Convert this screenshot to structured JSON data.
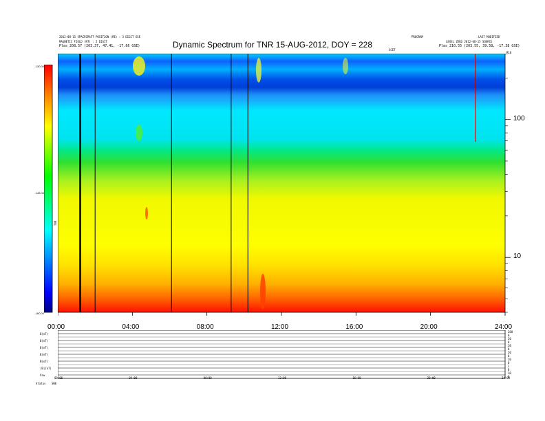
{
  "title": "Dynamic Spectrum for TNR 15-AUG-2012, DOY = 228",
  "header_left": [
    "2012-08-15 SPACECRAFT POSITION (RE) : 3 DIGIT GSE",
    "MAGNETIC FIELD (NT) : 2 DIGIT",
    "Plas    208.57 (203.37, 47.41, -17.66 GSE)"
  ],
  "header_right_col1": [
    "PROGRAM",
    "SCET",
    ""
  ],
  "header_right_col2": [
    "LAST MODIFIED",
    "LEVEL ZERO 2012-08-15 SOURCE",
    "Plas    210.55 (203.55, 39.58, -17.38 GSE)"
  ],
  "top_right_code": "R10",
  "colorbar": {
    "label": "TNR",
    "ticks": [
      "-130.00",
      "-145.00",
      "-160.00"
    ],
    "gradient": [
      "#ff0000",
      "#ff8000",
      "#ffff00",
      "#00ff00",
      "#00ffff",
      "#0000ff",
      "#000080"
    ]
  },
  "chart_data": {
    "type": "heatmap",
    "title": "Dynamic Spectrum for TNR 15-AUG-2012, DOY = 228",
    "xlabel": "",
    "ylabel": "",
    "x_unit": "hours UT",
    "xlim": [
      0,
      24
    ],
    "x_ticks": [
      "00:00",
      "04:00",
      "08:00",
      "12:00",
      "16:00",
      "20:00",
      "24:00"
    ],
    "y_scale": "log",
    "ylim": [
      4,
      300
    ],
    "y_ticks": [
      "100",
      "10"
    ],
    "colorbar_range": [
      -160,
      -130
    ],
    "grid": false,
    "data_gaps_hours": [
      1.2,
      2.0,
      6.1,
      9.3,
      10.2
    ],
    "red_line_hours": 22.4,
    "bands": [
      {
        "name": "orange-red",
        "freq_low": 4,
        "freq_high": 5
      },
      {
        "name": "yellow-orange",
        "freq_low": 5,
        "freq_high": 9
      },
      {
        "name": "yellow",
        "freq_low": 9,
        "freq_high": 45
      },
      {
        "name": "green",
        "freq_low": 45,
        "freq_high": 70
      },
      {
        "name": "cyan",
        "freq_low": 70,
        "freq_high": 180
      },
      {
        "name": "blue",
        "freq_low": 180,
        "freq_high": 300
      }
    ],
    "bursts_hours": [
      4.2,
      10.7,
      15.3
    ]
  },
  "lower_panel": {
    "row_labels": [
      "B(nT)",
      "B(nT)",
      "B(nT)",
      "B(nT)",
      "N(nT)",
      "|B|(nT)",
      "Vsw"
    ],
    "left_footer": "Status",
    "left_footer2": "SWE",
    "right_labels": [
      "200",
      "0",
      "20",
      "0",
      "20",
      "0",
      "20",
      "0",
      "20",
      "0",
      "2",
      "0",
      "20",
      "0"
    ],
    "x_ticks": [
      "00:00",
      "04:00",
      "08:00",
      "12:00",
      "16:00",
      "20:00",
      "24:00"
    ]
  }
}
